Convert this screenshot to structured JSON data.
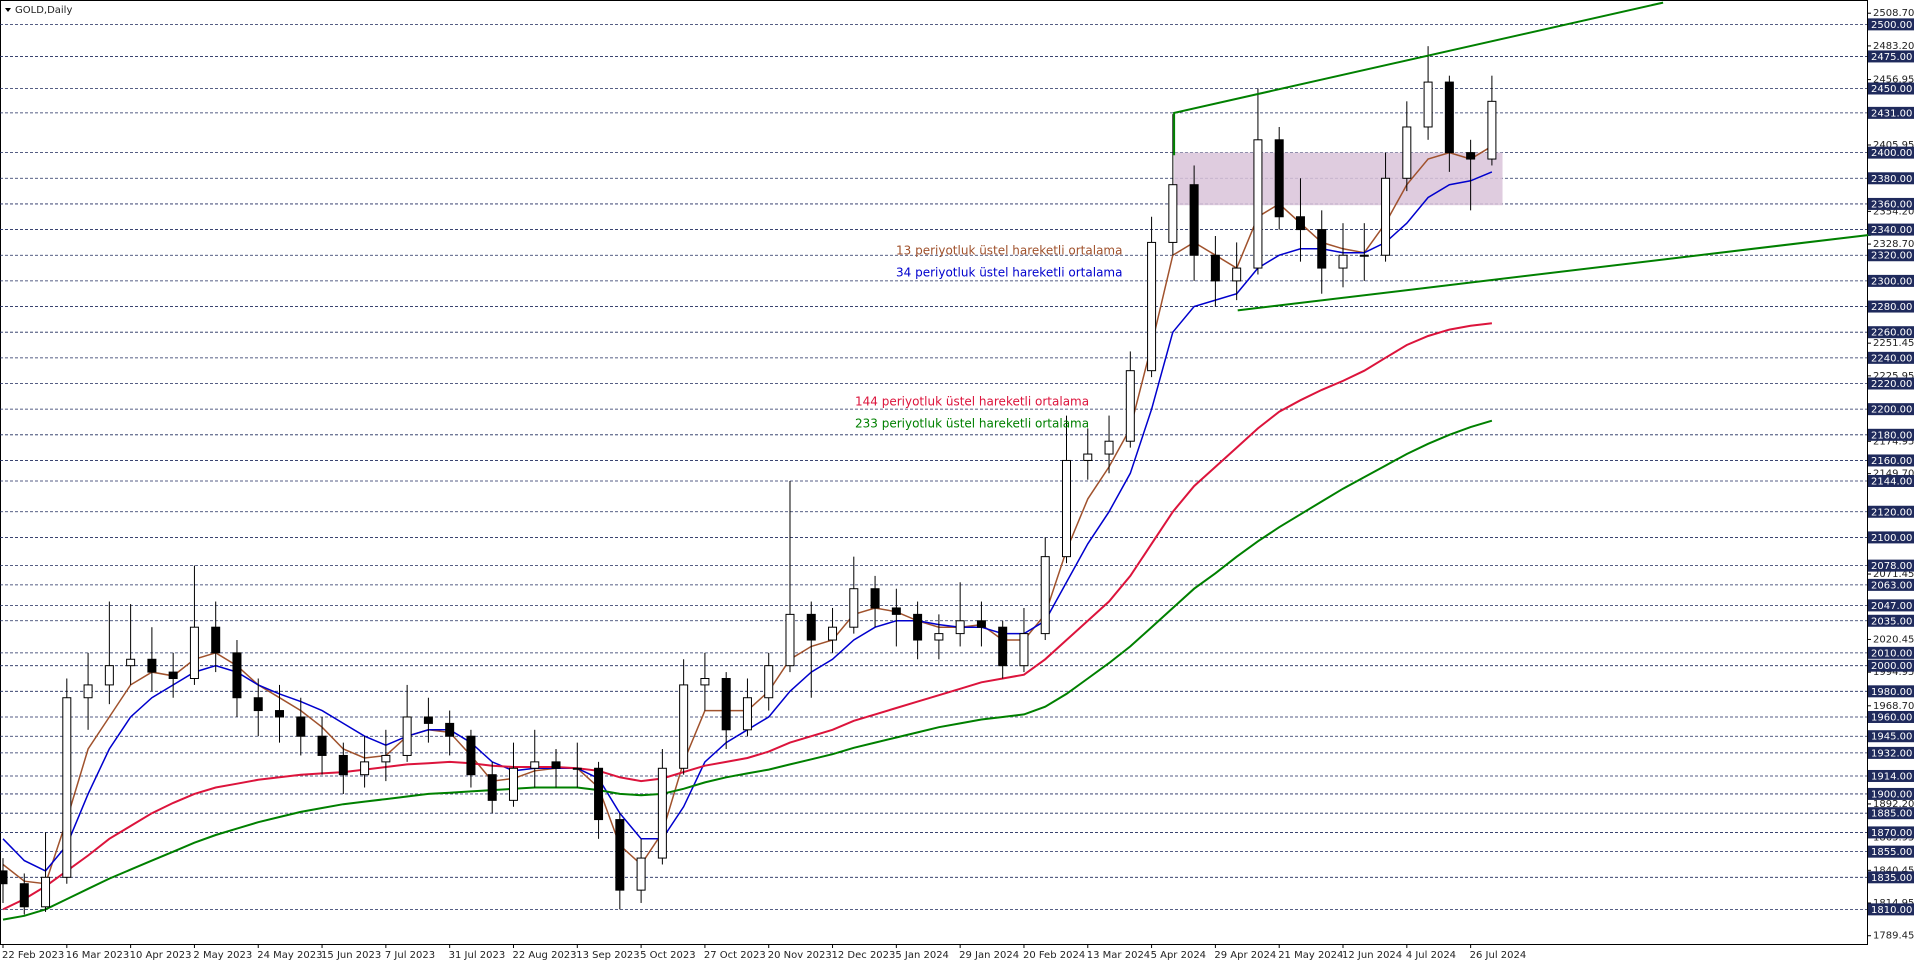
{
  "chart_data": {
    "type": "candlestick",
    "title": "GOLD,Daily",
    "categories": [
      "22 Feb 2023",
      null,
      null,
      "16 Mar 2023",
      null,
      null,
      "10 Apr 2023",
      null,
      null,
      "2 May 2023",
      null,
      null,
      "24 May 2023",
      null,
      null,
      "15 Jun 2023",
      null,
      null,
      "7 Jul 2023",
      null,
      null,
      "31 Jul 2023",
      null,
      null,
      "22 Aug 2023",
      null,
      null,
      "13 Sep 2023",
      null,
      null,
      "5 Oct 2023",
      null,
      null,
      "27 Oct 2023",
      null,
      null,
      "20 Nov 2023",
      null,
      null,
      "12 Dec 2023",
      null,
      null,
      "5 Jan 2024",
      null,
      null,
      "29 Jan 2024",
      null,
      null,
      "20 Feb 2024",
      null,
      null,
      "13 Mar 2024",
      null,
      null,
      "5 Apr 2024",
      null,
      null,
      "29 Apr 2024",
      null,
      null,
      "21 May 2024",
      null,
      null,
      "12 Jun 2024",
      null,
      null,
      "4 Jul 2024",
      null,
      null,
      "26 Jul 2024",
      null
    ],
    "open": [
      1840,
      1830,
      1812,
      1835,
      1975,
      1985,
      2000,
      2005,
      1995,
      1990,
      2030,
      2010,
      1975,
      1965,
      1960,
      1945,
      1930,
      1915,
      1925,
      1930,
      1960,
      1955,
      1945,
      1915,
      1895,
      1920,
      1925,
      1920,
      1920,
      1880,
      1825,
      1850,
      1920,
      1985,
      1990,
      1950,
      1975,
      2000,
      2040,
      2020,
      2030,
      2060,
      2045,
      2040,
      2020,
      2025,
      2035,
      2030,
      2000,
      2025,
      2085,
      2160,
      2165,
      2175,
      2230,
      2330,
      2375,
      2320,
      2300,
      2310,
      2410,
      2350,
      2340,
      2310,
      2320,
      2320,
      2380,
      2420,
      2455,
      2400,
      2395
    ],
    "high": [
      1850,
      1838,
      1870,
      1990,
      2010,
      2050,
      2048,
      2030,
      2010,
      2078,
      2050,
      2020,
      1990,
      1985,
      1975,
      1960,
      1940,
      1945,
      1950,
      1985,
      1975,
      1965,
      1950,
      1925,
      1940,
      1950,
      1935,
      1940,
      1925,
      1885,
      1865,
      1935,
      2005,
      2010,
      1995,
      1990,
      2010,
      2144,
      2050,
      2045,
      2085,
      2070,
      2060,
      2050,
      2040,
      2065,
      2050,
      2035,
      2045,
      2100,
      2195,
      2185,
      2195,
      2245,
      2350,
      2430,
      2390,
      2335,
      2330,
      2450,
      2420,
      2380,
      2355,
      2345,
      2345,
      2400,
      2440,
      2483,
      2460,
      2410,
      2460
    ],
    "low": [
      1815,
      1806,
      1808,
      1830,
      1950,
      1970,
      1985,
      1980,
      1975,
      1985,
      1995,
      1960,
      1945,
      1940,
      1930,
      1915,
      1900,
      1905,
      1910,
      1925,
      1940,
      1930,
      1905,
      1885,
      1890,
      1905,
      1905,
      1905,
      1865,
      1810,
      1815,
      1845,
      1915,
      1965,
      1935,
      1945,
      1965,
      1995,
      1975,
      2010,
      2025,
      2030,
      2015,
      2005,
      2005,
      2015,
      2015,
      1990,
      1995,
      2020,
      2080,
      2145,
      2150,
      2170,
      2225,
      2320,
      2300,
      2280,
      2285,
      2305,
      2340,
      2315,
      2290,
      2295,
      2300,
      2315,
      2370,
      2410,
      2385,
      2355,
      2390
    ],
    "close": [
      1830,
      1812,
      1835,
      1975,
      1985,
      2000,
      2005,
      1995,
      1990,
      2030,
      2010,
      1975,
      1965,
      1960,
      1945,
      1930,
      1915,
      1925,
      1930,
      1960,
      1955,
      1945,
      1915,
      1895,
      1920,
      1925,
      1920,
      1920,
      1880,
      1825,
      1850,
      1920,
      1985,
      1990,
      1950,
      1975,
      2000,
      2040,
      2020,
      2030,
      2060,
      2045,
      2040,
      2020,
      2025,
      2035,
      2030,
      2000,
      2025,
      2085,
      2160,
      2165,
      2175,
      2230,
      2330,
      2375,
      2320,
      2300,
      2310,
      2410,
      2350,
      2340,
      2310,
      2320,
      2320,
      2380,
      2420,
      2455,
      2400,
      2395,
      2440
    ],
    "series": [
      {
        "name": "13 periyotluk üstel hareketli ortalama",
        "color": "#a0522d",
        "values": [
          1845,
          1832,
          1830,
          1880,
          1935,
          1960,
          1985,
          1995,
          1992,
          2005,
          2010,
          2000,
          1985,
          1975,
          1965,
          1952,
          1935,
          1928,
          1930,
          1945,
          1950,
          1948,
          1930,
          1910,
          1912,
          1918,
          1920,
          1920,
          1905,
          1860,
          1845,
          1870,
          1925,
          1965,
          1965,
          1965,
          1980,
          2005,
          2015,
          2020,
          2040,
          2045,
          2042,
          2035,
          2030,
          2030,
          2032,
          2020,
          2020,
          2040,
          2090,
          2130,
          2155,
          2185,
          2250,
          2320,
          2330,
          2320,
          2310,
          2350,
          2360,
          2345,
          2330,
          2325,
          2322,
          2345,
          2375,
          2395,
          2400,
          2395,
          2405
        ]
      },
      {
        "name": "34 periyotluk üstel hareketli ortalama",
        "color": "#0000cd",
        "values": [
          1865,
          1848,
          1840,
          1860,
          1900,
          1935,
          1960,
          1975,
          1985,
          1995,
          2000,
          1995,
          1985,
          1978,
          1972,
          1965,
          1955,
          1945,
          1938,
          1945,
          1950,
          1950,
          1940,
          1925,
          1918,
          1920,
          1920,
          1920,
          1912,
          1885,
          1865,
          1865,
          1890,
          1925,
          1940,
          1950,
          1960,
          1980,
          1995,
          2005,
          2020,
          2030,
          2035,
          2035,
          2032,
          2030,
          2030,
          2025,
          2025,
          2035,
          2065,
          2095,
          2120,
          2150,
          2200,
          2260,
          2280,
          2285,
          2290,
          2310,
          2320,
          2325,
          2325,
          2322,
          2322,
          2330,
          2345,
          2365,
          2375,
          2378,
          2385
        ]
      },
      {
        "name": "144 periyotluk üstel hareketli ortalama",
        "color": "#dc143c",
        "values": [
          1810,
          1818,
          1828,
          1840,
          1852,
          1865,
          1875,
          1885,
          1893,
          1900,
          1905,
          1908,
          1911,
          1913,
          1915,
          1916,
          1917,
          1919,
          1921,
          1923,
          1924,
          1925,
          1924,
          1922,
          1921,
          1921,
          1921,
          1920,
          1918,
          1913,
          1910,
          1912,
          1917,
          1922,
          1925,
          1928,
          1933,
          1940,
          1945,
          1950,
          1957,
          1962,
          1967,
          1972,
          1977,
          1982,
          1987,
          1990,
          1993,
          2005,
          2020,
          2035,
          2050,
          2070,
          2095,
          2120,
          2140,
          2155,
          2170,
          2185,
          2198,
          2207,
          2215,
          2222,
          2230,
          2240,
          2250,
          2257,
          2262,
          2265,
          2267
        ]
      },
      {
        "name": "233 periyotluk üstel hareketli ortalama",
        "color": "#008000",
        "values": [
          1802,
          1805,
          1810,
          1818,
          1826,
          1834,
          1841,
          1848,
          1855,
          1862,
          1868,
          1873,
          1878,
          1882,
          1886,
          1889,
          1892,
          1894,
          1896,
          1898,
          1900,
          1901,
          1902,
          1903,
          1904,
          1905,
          1905,
          1905,
          1903,
          1900,
          1899,
          1900,
          1904,
          1909,
          1913,
          1916,
          1919,
          1923,
          1927,
          1931,
          1936,
          1940,
          1944,
          1948,
          1952,
          1955,
          1958,
          1960,
          1962,
          1968,
          1978,
          1990,
          2002,
          2015,
          2030,
          2045,
          2060,
          2072,
          2085,
          2097,
          2108,
          2118,
          2128,
          2138,
          2147,
          2156,
          2165,
          2173,
          2180,
          2186,
          2191
        ]
      }
    ],
    "ylim": [
      1783,
      2519
    ],
    "yticks": [
      {
        "value": 2508.7,
        "label": "2508.70"
      },
      {
        "value": 2483.2,
        "label": "2483.20"
      },
      {
        "value": 2456.95,
        "label": "2456.95"
      },
      {
        "value": 2405.95,
        "label": "2405.95"
      },
      {
        "value": 2354.2,
        "label": "2354.20"
      },
      {
        "value": 2328.7,
        "label": "2328.70"
      },
      {
        "value": 2251.45,
        "label": "2251.45"
      },
      {
        "value": 2225.95,
        "label": "2225.95"
      },
      {
        "value": 2174.95,
        "label": "2174.95"
      },
      {
        "value": 2149.7,
        "label": "2149.70"
      },
      {
        "value": 2071.45,
        "label": "2071.45"
      },
      {
        "value": 2020.45,
        "label": "2020.45"
      },
      {
        "value": 1994.95,
        "label": "1994.95"
      },
      {
        "value": 1968.7,
        "label": "1968.70"
      },
      {
        "value": 1892.2,
        "label": "1892.20"
      },
      {
        "value": 1865.95,
        "label": "1865.95"
      },
      {
        "value": 1840.45,
        "label": "1840.45"
      },
      {
        "value": 1814.95,
        "label": "1814.95"
      },
      {
        "value": 1789.45,
        "label": "1789.45"
      }
    ],
    "levels": [
      {
        "value": 2500,
        "label": "2500.00"
      },
      {
        "value": 2475,
        "label": "2475.00"
      },
      {
        "value": 2450,
        "label": "2450.00"
      },
      {
        "value": 2431,
        "label": "2431.00"
      },
      {
        "value": 2400,
        "label": "2400.00"
      },
      {
        "value": 2380,
        "label": "2380.00"
      },
      {
        "value": 2360,
        "label": "2360.00"
      },
      {
        "value": 2340,
        "label": "2340.00"
      },
      {
        "value": 2320,
        "label": "2320.00"
      },
      {
        "value": 2300,
        "label": "2300.00"
      },
      {
        "value": 2280,
        "label": "2280.00"
      },
      {
        "value": 2260,
        "label": "2260.00"
      },
      {
        "value": 2240,
        "label": "2240.00"
      },
      {
        "value": 2220,
        "label": "2220.00"
      },
      {
        "value": 2200,
        "label": "2200.00"
      },
      {
        "value": 2180,
        "label": "2180.00"
      },
      {
        "value": 2160,
        "label": "2160.00"
      },
      {
        "value": 2144,
        "label": "2144.00"
      },
      {
        "value": 2120,
        "label": "2120.00"
      },
      {
        "value": 2100,
        "label": "2100.00"
      },
      {
        "value": 2078,
        "label": "2078.00"
      },
      {
        "value": 2063,
        "label": "2063.00"
      },
      {
        "value": 2047,
        "label": "2047.00"
      },
      {
        "value": 2035,
        "label": "2035.00"
      },
      {
        "value": 2010,
        "label": "2010.00"
      },
      {
        "value": 2000,
        "label": "2000.00"
      },
      {
        "value": 1980,
        "label": "1980.00"
      },
      {
        "value": 1960,
        "label": "1960.00"
      },
      {
        "value": 1945,
        "label": "1945.00"
      },
      {
        "value": 1932,
        "label": "1932.00"
      },
      {
        "value": 1914,
        "label": "1914.00"
      },
      {
        "value": 1900,
        "label": "1900.00"
      },
      {
        "value": 1885,
        "label": "1885.00"
      },
      {
        "value": 1870,
        "label": "1870.00"
      },
      {
        "value": 1855,
        "label": "1855.00"
      },
      {
        "value": 1835,
        "label": "1835.00"
      },
      {
        "value": 1810,
        "label": "1810.00"
      }
    ],
    "level_color": "#1f2a5c",
    "zone": {
      "x": [
        55.06,
        70.5
      ],
      "y": [
        2359,
        2400
      ],
      "color": "#d9c3d9"
    },
    "trendlines": [
      {
        "color": "#008000",
        "x": [
          55.06,
          55.06,
          78.05
        ],
        "y": [
          2398,
          2431,
          2517
        ]
      },
      {
        "color": "#008000",
        "x": [
          58.05,
          87.82
        ],
        "y": [
          2277,
          2336
        ]
      }
    ],
    "bull_color": "#ffffff",
    "bear_color": "#000000"
  }
}
